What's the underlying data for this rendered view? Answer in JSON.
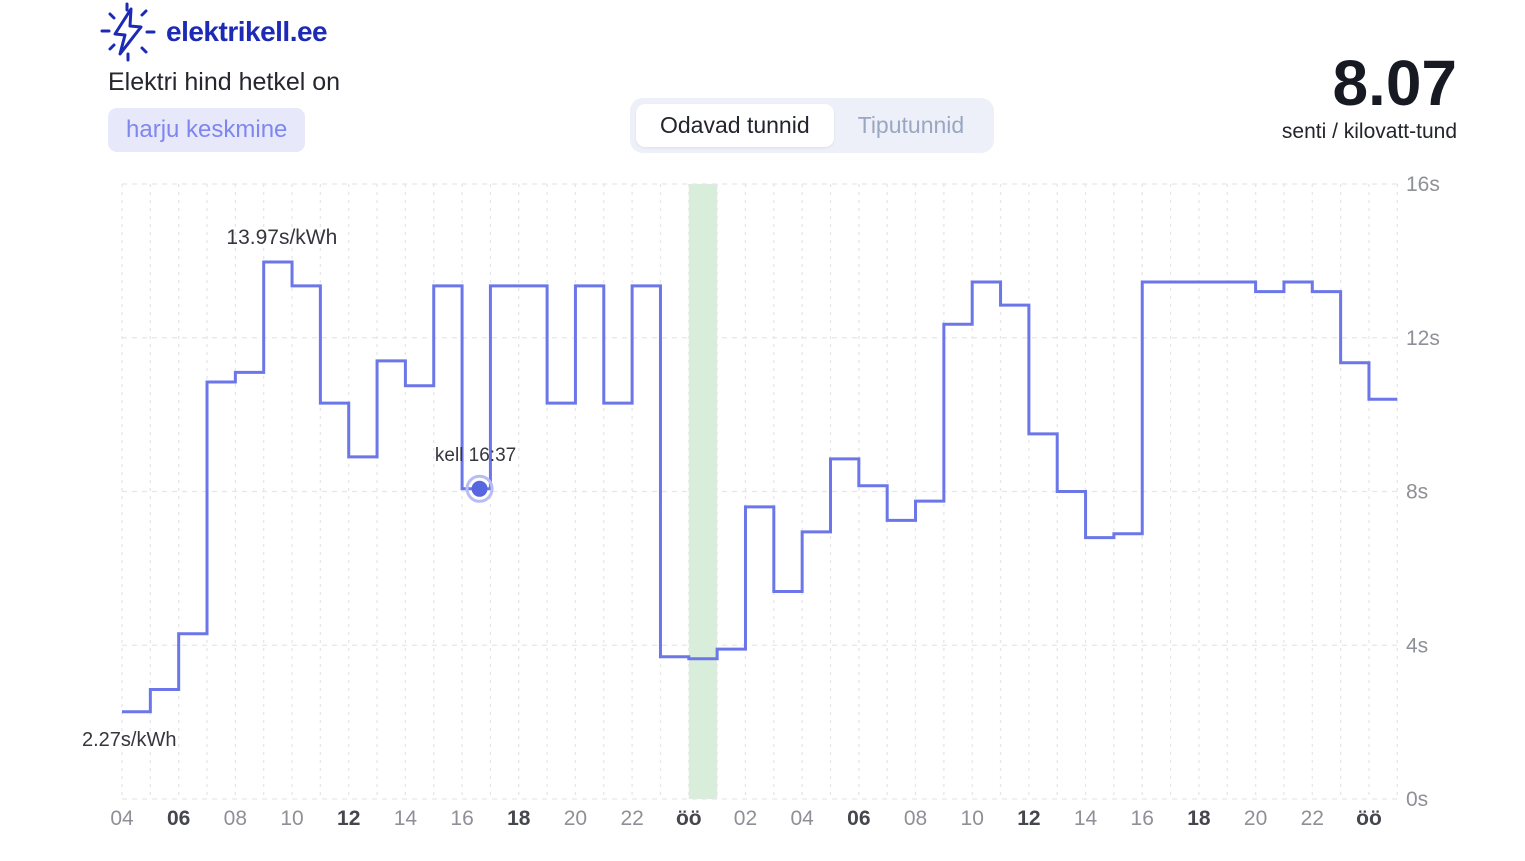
{
  "header": {
    "brand": "elektrikell.ee",
    "title": "Elektri hind hetkel on",
    "region": "harju keskmine"
  },
  "tabs": {
    "cheap_label": "Odavad tunnid",
    "peak_label": "Tiputunnid",
    "active": "Odavad tunnid"
  },
  "price": {
    "value": "8.07",
    "unit": "senti / kilovatt-tund"
  },
  "chart_data": {
    "type": "line",
    "step": true,
    "ylabel": "senti/kWh",
    "ylim": [
      0,
      16
    ],
    "grid": true,
    "hours": [
      "04",
      "05",
      "06",
      "07",
      "08",
      "09",
      "10",
      "11",
      "12",
      "13",
      "14",
      "15",
      "16",
      "17",
      "18",
      "19",
      "20",
      "21",
      "22",
      "23",
      "öö",
      "01",
      "02",
      "03",
      "04",
      "05",
      "06",
      "07",
      "08",
      "09",
      "10",
      "11",
      "12",
      "13",
      "14",
      "15",
      "16",
      "17",
      "18",
      "19",
      "20",
      "21",
      "22",
      "23",
      "öö"
    ],
    "values": [
      2.27,
      2.85,
      4.3,
      10.85,
      11.1,
      13.97,
      13.35,
      10.3,
      8.9,
      11.4,
      10.75,
      13.35,
      8.07,
      13.35,
      13.35,
      10.3,
      13.35,
      10.3,
      13.35,
      3.7,
      3.65,
      3.9,
      7.6,
      5.4,
      6.95,
      8.85,
      8.15,
      7.25,
      7.75,
      12.35,
      13.45,
      12.85,
      9.5,
      8.0,
      6.8,
      6.9,
      13.45,
      13.45,
      13.45,
      13.45,
      13.2,
      13.45,
      13.2,
      11.35,
      10.4
    ],
    "ticks_every": 2,
    "bold_tick_labels": [
      "06",
      "12",
      "18",
      "öö"
    ],
    "yticks": [
      {
        "value": 16,
        "label": "16s"
      },
      {
        "value": 12,
        "label": "12s"
      },
      {
        "value": 8,
        "label": "8s"
      },
      {
        "value": 4,
        "label": "4s"
      },
      {
        "value": 0,
        "label": "0s"
      }
    ],
    "annotations": {
      "max": "13.97s/kWh",
      "min": "2.27s/kWh",
      "now": "kell 16:37"
    },
    "now_marker": {
      "hour_index": 12,
      "minute": 37,
      "value": 8.07,
      "time": "16:37"
    },
    "cheap_band": {
      "from_index": 20,
      "to_index": 21
    },
    "colors": {
      "line": "#6b76e8",
      "grid": "#e6e6ea",
      "cheap_band": "#d9eeda",
      "dot": "#5767e0",
      "dot_ring": "#b6bdf4",
      "tick": "#8f9097",
      "tick_bold": "#46474e",
      "annotation": "#35363e"
    }
  },
  "colors": {
    "brand_blue": "#1c2ab5",
    "badge_bg": "#e8e8fb",
    "badge_text": "#7e87ee",
    "toggle_bg": "#edf0f8"
  }
}
